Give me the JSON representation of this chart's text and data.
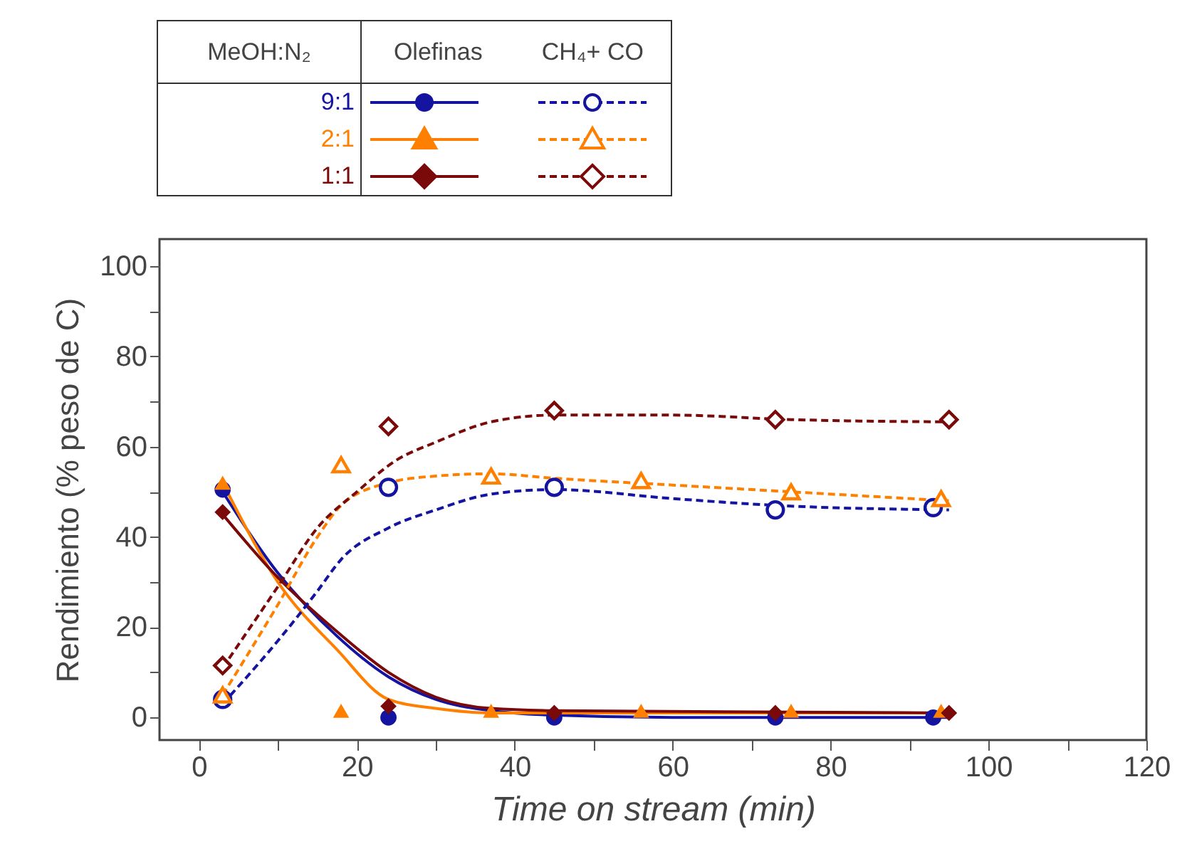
{
  "chart_data": {
    "type": "scatter",
    "xlabel": "Time on stream (min)",
    "ylabel": "Rendimiento (% peso de C)",
    "legend_title": "MeOH:N₂",
    "annotations": [
      "Olefinas",
      "CH₄+ CO"
    ],
    "legend": "top",
    "grid": false,
    "xlim": [
      -5,
      120
    ],
    "xticks": [
      0,
      {
        "value": 10,
        "label": null
      },
      20,
      {
        "value": 30,
        "label": null
      },
      40,
      {
        "value": 50,
        "label": null
      },
      60,
      {
        "value": 70,
        "label": null
      },
      80,
      {
        "value": 90,
        "label": null
      },
      100,
      {
        "value": 110,
        "label": null
      },
      120
    ],
    "ylim": [
      -5,
      106
    ],
    "yticks": [
      0,
      {
        "value": 10,
        "label": null
      },
      20,
      {
        "value": 30,
        "label": null
      },
      40,
      {
        "value": 50,
        "label": null
      },
      60,
      {
        "value": 70,
        "label": null
      },
      80,
      {
        "value": 90,
        "label": null
      },
      100
    ],
    "series": [
      {
        "name": "9:1",
        "color": "#1414a0",
        "marker": "circle",
        "line_style": "solid",
        "x": [
          3,
          24,
          45,
          73,
          93
        ],
        "values": [
          50.5,
          0,
          0,
          0,
          0
        ]
      },
      {
        "name": "2:1",
        "color": "#ff8000",
        "marker": "triangle",
        "line_style": "solid",
        "x": [
          3,
          18,
          37,
          56,
          75,
          94
        ],
        "values": [
          52,
          1.5,
          1.5,
          1.5,
          1.5,
          1.5
        ]
      },
      {
        "name": "1:1",
        "color": "#7a0a0a",
        "marker": "diamond",
        "line_style": "solid",
        "x": [
          3,
          24,
          45,
          73,
          95
        ],
        "values": [
          45.5,
          2.5,
          1,
          1,
          1
        ]
      },
      {
        "color": "#1414a0",
        "marker": "circle",
        "line_style": "dashed",
        "x": [
          3,
          24,
          45,
          73,
          93
        ],
        "values": [
          4,
          51,
          51,
          46,
          46.5
        ]
      },
      {
        "color": "#ff8000",
        "marker": "triangle",
        "line_style": "dashed",
        "x": [
          3,
          18,
          37,
          56,
          75,
          94
        ],
        "values": [
          5,
          56,
          53.5,
          52.5,
          50,
          48.5
        ]
      },
      {
        "color": "#7a0a0a",
        "marker": "diamond",
        "line_style": "dashed",
        "x": [
          3,
          24,
          45,
          73,
          95
        ],
        "values": [
          11.5,
          64.5,
          68,
          66,
          66
        ]
      },
      {
        "type": "line",
        "color": "#1414a0",
        "marker": "none",
        "line_style": "solid",
        "x": [
          3,
          10,
          17.5,
          24,
          30,
          37,
          45,
          60,
          95
        ],
        "values": [
          50,
          32,
          18,
          9,
          4,
          1.5,
          0.5,
          0,
          0
        ]
      },
      {
        "type": "line",
        "color": "#ff8000",
        "marker": "none",
        "line_style": "solid",
        "x": [
          3,
          10,
          17.5,
          24,
          30,
          37,
          95
        ],
        "values": [
          52,
          30,
          15,
          4,
          2,
          1,
          1
        ]
      },
      {
        "type": "line",
        "color": "#7a0a0a",
        "marker": "none",
        "line_style": "solid",
        "x": [
          3,
          10,
          17.5,
          24,
          30,
          37,
          45,
          95
        ],
        "values": [
          45,
          31,
          19,
          10,
          4.5,
          2,
          1.5,
          1
        ]
      },
      {
        "type": "line",
        "color": "#1414a0",
        "marker": "none",
        "line_style": "dashed",
        "x": [
          3,
          10,
          15,
          18,
          24,
          30,
          37,
          45,
          60,
          73,
          95
        ],
        "values": [
          3,
          17,
          28,
          35,
          42,
          46,
          49.5,
          50.5,
          48.5,
          47,
          46
        ]
      },
      {
        "type": "line",
        "color": "#ff8000",
        "marker": "none",
        "line_style": "dashed",
        "x": [
          3,
          10,
          15,
          18,
          24,
          30,
          37,
          45,
          60,
          75,
          95
        ],
        "values": [
          5,
          25,
          40,
          47,
          52,
          53.5,
          54,
          53,
          51.5,
          50,
          48
        ]
      },
      {
        "type": "line",
        "color": "#7a0a0a",
        "marker": "none",
        "line_style": "dashed",
        "x": [
          3,
          10,
          15,
          20,
          25,
          30,
          37,
          45,
          60,
          75,
          95
        ],
        "values": [
          11,
          29,
          42,
          50,
          57,
          61,
          65.5,
          67,
          67,
          66,
          65.5
        ]
      }
    ]
  }
}
